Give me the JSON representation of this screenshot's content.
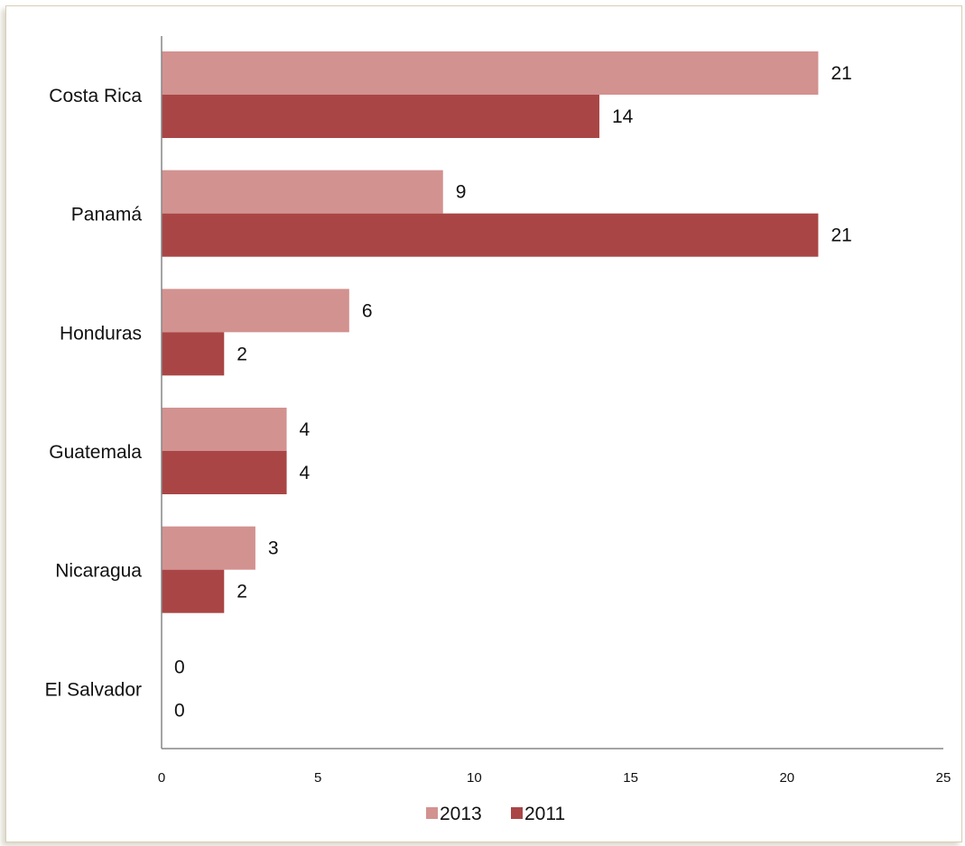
{
  "chart_data": {
    "type": "bar",
    "orientation": "horizontal",
    "categories": [
      "Costa Rica",
      "Panamá",
      "Honduras",
      "Guatemala",
      "Nicaragua",
      "El Salvador"
    ],
    "series": [
      {
        "name": "2013",
        "color": "#d29290",
        "values": [
          21,
          9,
          6,
          4,
          3,
          0
        ]
      },
      {
        "name": "2011",
        "color": "#a94645",
        "values": [
          14,
          21,
          2,
          4,
          2,
          0
        ]
      }
    ],
    "xlim": [
      0,
      25
    ],
    "xticks": [
      "0",
      "5",
      "10",
      "15",
      "20",
      "25"
    ],
    "grid": false,
    "legend_position": "bottom"
  }
}
